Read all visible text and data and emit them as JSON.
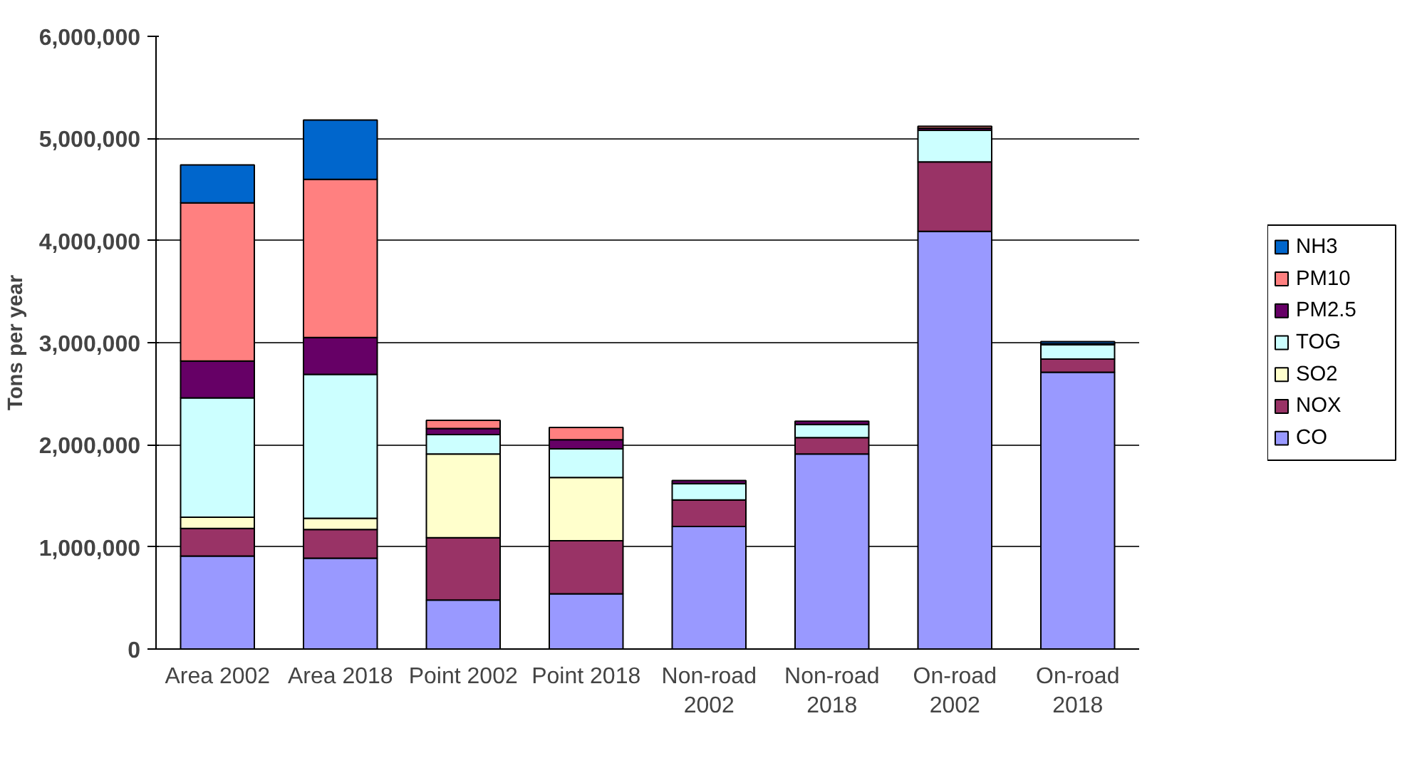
{
  "chart_data": {
    "type": "bar",
    "stacked": true,
    "ylabel": "Tons per year",
    "categories": [
      "Area 2002",
      "Area 2018",
      "Point 2002",
      "Point 2018",
      "Non-road\n2002",
      "Non-road\n2018",
      "On-road\n2002",
      "On-road\n2018"
    ],
    "series": [
      {
        "name": "CO",
        "color": "#9999ff",
        "values": [
          910000,
          890000,
          480000,
          540000,
          1200000,
          1910000,
          4090000,
          2710000
        ]
      },
      {
        "name": "NOX",
        "color": "#993366",
        "values": [
          270000,
          280000,
          610000,
          520000,
          260000,
          160000,
          680000,
          130000
        ]
      },
      {
        "name": "SO2",
        "color": "#ffffcc",
        "values": [
          110000,
          110000,
          820000,
          620000,
          null,
          null,
          null,
          null
        ]
      },
      {
        "name": "TOG",
        "color": "#ccffff",
        "values": [
          1170000,
          1410000,
          190000,
          280000,
          160000,
          130000,
          310000,
          140000
        ]
      },
      {
        "name": "PM2.5",
        "color": "#660066",
        "values": [
          360000,
          360000,
          60000,
          90000,
          30000,
          30000,
          20000,
          10000
        ]
      },
      {
        "name": "PM10",
        "color": "#ff8080",
        "values": [
          1550000,
          1550000,
          80000,
          120000,
          null,
          null,
          20000,
          null
        ]
      },
      {
        "name": "NH3",
        "color": "#0066cc",
        "values": [
          370000,
          580000,
          null,
          null,
          null,
          null,
          null,
          20000
        ]
      }
    ],
    "ylim": [
      0,
      6000000
    ],
    "yticks": [
      {
        "value": 0,
        "label": "0"
      },
      {
        "value": 1000000,
        "label": "1,000,000"
      },
      {
        "value": 2000000,
        "label": "2,000,000"
      },
      {
        "value": 3000000,
        "label": "3,000,000"
      },
      {
        "value": 4000000,
        "label": "4,000,000"
      },
      {
        "value": 5000000,
        "label": "5,000,000"
      },
      {
        "value": 6000000,
        "label": "6,000,000"
      }
    ],
    "grid": "y",
    "legend": "right"
  }
}
